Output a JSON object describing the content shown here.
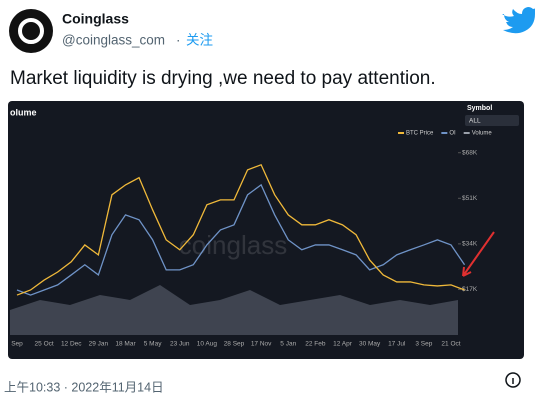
{
  "tweet": {
    "name": "Coinglass",
    "handle": "@coinglass_com",
    "separator": "·",
    "follow": "关注",
    "text": "Market liquidity is drying  ,we need to pay attention.",
    "timestamp": "上午10:33 · 2022年11月14日"
  },
  "chart_data": {
    "type": "line",
    "title": "olume",
    "symbol_label": "Symbol",
    "symbol_value": "ALL",
    "watermark": "coinglass",
    "categories": [
      "Sep",
      null,
      "25 Oct",
      null,
      "12 Dec",
      null,
      "29 Jan",
      null,
      "18 Mar",
      null,
      "5 May",
      null,
      "23 Jun",
      null,
      "10 Aug",
      null,
      "28 Sep",
      null,
      "17 Nov",
      null,
      "5 Jan",
      null,
      "22 Feb",
      null,
      "12 Apr",
      null,
      "30 May",
      null,
      "17 Jul",
      null,
      "3 Sep",
      null,
      "21 Oct",
      null
    ],
    "series": [
      {
        "name": "BTC Price",
        "color": "#f0b93a",
        "values": [
          14900,
          16800,
          20500,
          23500,
          27300,
          33600,
          29900,
          52300,
          56000,
          58700,
          46700,
          35500,
          31800,
          37400,
          48600,
          50400,
          50400,
          61600,
          63500,
          52300,
          44800,
          41100,
          41100,
          43000,
          41100,
          37400,
          28000,
          22400,
          19800,
          19800,
          18700,
          18300,
          18700,
          16800
        ]
      },
      {
        "name": "OI",
        "color": "#6f93c7",
        "values": [
          16800,
          14900,
          16800,
          18700,
          22400,
          26200,
          22400,
          37400,
          44800,
          43000,
          35500,
          24300,
          24300,
          26200,
          33600,
          39200,
          41100,
          52300,
          56000,
          44800,
          35500,
          31800,
          33600,
          33600,
          31800,
          29900,
          24300,
          26200,
          29900,
          31800,
          33600,
          35500,
          33600,
          26200
        ]
      }
    ],
    "volume_legend": {
      "name": "Volume",
      "color": "#9aa0aa"
    },
    "ylim": [
      0,
      72000
    ],
    "yticks": [
      {
        "value": 17000,
        "label": "$17K"
      },
      {
        "value": 34000,
        "label": "$34K"
      },
      {
        "value": 51000,
        "label": "$51K"
      },
      {
        "value": 68000,
        "label": "$68K"
      }
    ]
  }
}
